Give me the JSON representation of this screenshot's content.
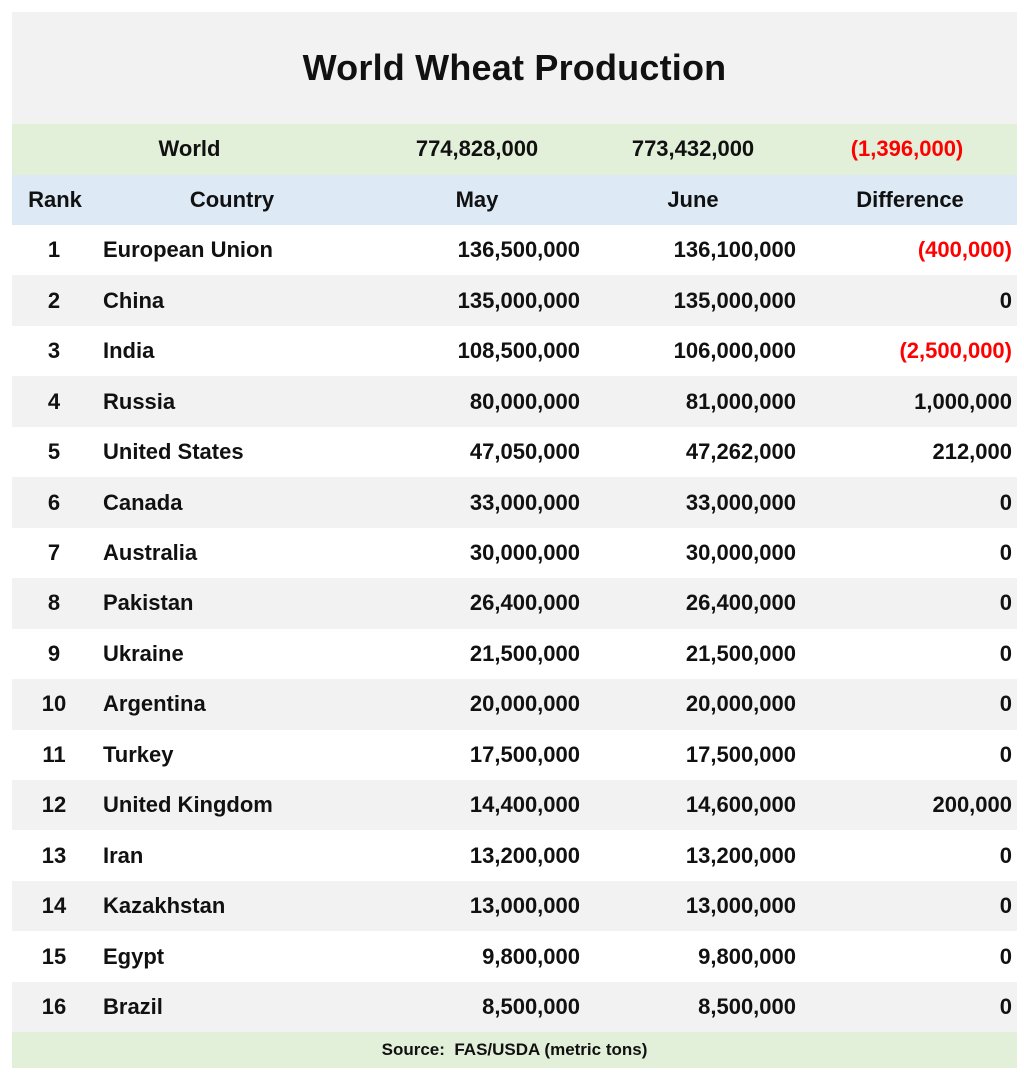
{
  "chart_data": {
    "type": "table",
    "title": "World Wheat Production",
    "world": {
      "label": "World",
      "may": "774,828,000",
      "june": "773,432,000",
      "difference": "(1,396,000)"
    },
    "columns": [
      "Rank",
      "Country",
      "May",
      "June",
      "Difference"
    ],
    "rows": [
      {
        "rank": "1",
        "country": "European Union",
        "may": "136,500,000",
        "june": "136,100,000",
        "difference": "(400,000)",
        "negative": true
      },
      {
        "rank": "2",
        "country": "China",
        "may": "135,000,000",
        "june": "135,000,000",
        "difference": "0",
        "negative": false
      },
      {
        "rank": "3",
        "country": "India",
        "may": "108,500,000",
        "june": "106,000,000",
        "difference": "(2,500,000)",
        "negative": true
      },
      {
        "rank": "4",
        "country": "Russia",
        "may": "80,000,000",
        "june": "81,000,000",
        "difference": "1,000,000",
        "negative": false
      },
      {
        "rank": "5",
        "country": "United States",
        "may": "47,050,000",
        "june": "47,262,000",
        "difference": "212,000",
        "negative": false
      },
      {
        "rank": "6",
        "country": "Canada",
        "may": "33,000,000",
        "june": "33,000,000",
        "difference": "0",
        "negative": false
      },
      {
        "rank": "7",
        "country": "Australia",
        "may": "30,000,000",
        "june": "30,000,000",
        "difference": "0",
        "negative": false
      },
      {
        "rank": "8",
        "country": "Pakistan",
        "may": "26,400,000",
        "june": "26,400,000",
        "difference": "0",
        "negative": false
      },
      {
        "rank": "9",
        "country": "Ukraine",
        "may": "21,500,000",
        "june": "21,500,000",
        "difference": "0",
        "negative": false
      },
      {
        "rank": "10",
        "country": "Argentina",
        "may": "20,000,000",
        "june": "20,000,000",
        "difference": "0",
        "negative": false
      },
      {
        "rank": "11",
        "country": "Turkey",
        "may": "17,500,000",
        "june": "17,500,000",
        "difference": "0",
        "negative": false
      },
      {
        "rank": "12",
        "country": "United Kingdom",
        "may": "14,400,000",
        "june": "14,600,000",
        "difference": "200,000",
        "negative": false
      },
      {
        "rank": "13",
        "country": "Iran",
        "may": "13,200,000",
        "june": "13,200,000",
        "difference": "0",
        "negative": false
      },
      {
        "rank": "14",
        "country": "Kazakhstan",
        "may": "13,000,000",
        "june": "13,000,000",
        "difference": "0",
        "negative": false
      },
      {
        "rank": "15",
        "country": "Egypt",
        "may": "9,800,000",
        "june": "9,800,000",
        "difference": "0",
        "negative": false
      },
      {
        "rank": "16",
        "country": "Brazil",
        "may": "8,500,000",
        "june": "8,500,000",
        "difference": "0",
        "negative": false
      }
    ],
    "source": "Source:  FAS/USDA (metric tons)",
    "colors": {
      "title_band": "#f2f2f2",
      "world_band": "#e2efd9",
      "header_band": "#dde9f5",
      "alt_row": "#f2f2f2",
      "negative_text": "#ff0000"
    }
  }
}
